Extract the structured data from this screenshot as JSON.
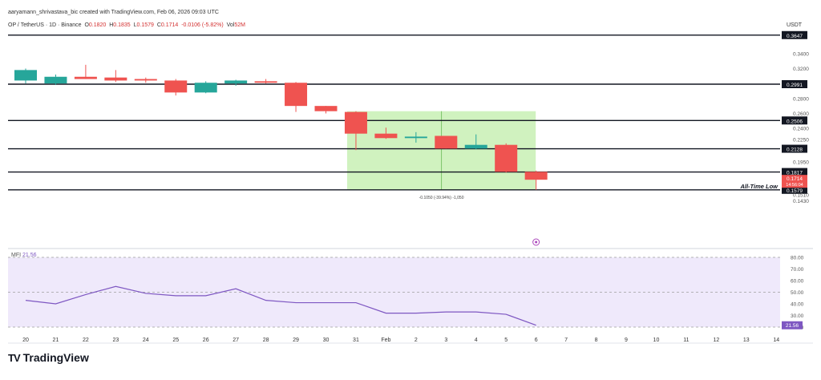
{
  "header": {
    "author_line": "aaryamann_shrivastava_bic created with TradingView.com, Feb 06, 2026 09:03 UTC",
    "symbol": "OP / TetherUS · 1D · Binance",
    "ohlc": {
      "o_label": "O",
      "o": "0.1820",
      "h_label": "H",
      "h": "0.1835",
      "l_label": "L",
      "l": "0.1579",
      "c_label": "C",
      "c": "0.1714",
      "change": "-0.0106 (-5.82%)",
      "vol_label": "Vol",
      "vol": "52M"
    },
    "currency": "USDT"
  },
  "colors": {
    "up": "#26a69a",
    "down": "#ef5350",
    "range_fill": "#c8f0b4",
    "mfi_line": "#7e57c2",
    "mfi_band": "#efe9fb"
  },
  "chart_data": [
    {
      "type": "candlestick",
      "title": "",
      "ylim": [
        0.13,
        0.38
      ],
      "price_axis_ticks": [
        "0.3400",
        "0.3200",
        "0.2800",
        "0.2600",
        "0.2400",
        "0.2250",
        "0.1950",
        "0.1510",
        "0.1430"
      ],
      "x_ticks": [
        "20",
        "21",
        "22",
        "23",
        "24",
        "25",
        "26",
        "27",
        "28",
        "29",
        "30",
        "31",
        "Feb",
        "2",
        "3",
        "4",
        "5",
        "6",
        "7",
        "8",
        "9",
        "10",
        "11",
        "12",
        "13",
        "14"
      ],
      "candles": [
        {
          "date": "20",
          "open": 0.304,
          "high": 0.32,
          "low": 0.3,
          "close": 0.318
        },
        {
          "date": "21",
          "open": 0.3,
          "high": 0.312,
          "low": 0.298,
          "close": 0.309
        },
        {
          "date": "22",
          "open": 0.309,
          "high": 0.325,
          "low": 0.306,
          "close": 0.306
        },
        {
          "date": "23",
          "open": 0.308,
          "high": 0.318,
          "low": 0.302,
          "close": 0.304
        },
        {
          "date": "24",
          "open": 0.306,
          "high": 0.308,
          "low": 0.301,
          "close": 0.304
        },
        {
          "date": "25",
          "open": 0.304,
          "high": 0.306,
          "low": 0.284,
          "close": 0.288
        },
        {
          "date": "26",
          "open": 0.288,
          "high": 0.303,
          "low": 0.287,
          "close": 0.301
        },
        {
          "date": "27",
          "open": 0.3,
          "high": 0.305,
          "low": 0.297,
          "close": 0.304
        },
        {
          "date": "28",
          "open": 0.303,
          "high": 0.306,
          "low": 0.3,
          "close": 0.301
        },
        {
          "date": "29",
          "open": 0.301,
          "high": 0.302,
          "low": 0.262,
          "close": 0.27
        },
        {
          "date": "30",
          "open": 0.27,
          "high": 0.27,
          "low": 0.26,
          "close": 0.263
        },
        {
          "date": "31",
          "open": 0.262,
          "high": 0.263,
          "low": 0.211,
          "close": 0.233
        },
        {
          "date": "Feb",
          "open": 0.233,
          "high": 0.241,
          "low": 0.226,
          "close": 0.227
        },
        {
          "date": "2",
          "open": 0.227,
          "high": 0.235,
          "low": 0.221,
          "close": 0.229
        },
        {
          "date": "3",
          "open": 0.23,
          "high": 0.23,
          "low": 0.213,
          "close": 0.213
        },
        {
          "date": "4",
          "open": 0.213,
          "high": 0.232,
          "low": 0.212,
          "close": 0.218
        },
        {
          "date": "5",
          "open": 0.218,
          "high": 0.22,
          "low": 0.181,
          "close": 0.182
        },
        {
          "date": "6",
          "open": 0.182,
          "high": 0.1835,
          "low": 0.1579,
          "close": 0.1714
        }
      ],
      "levels": [
        {
          "value": 0.3647,
          "label": "0.3647"
        },
        {
          "value": 0.2991,
          "label": "0.2991"
        },
        {
          "value": 0.2506,
          "label": "0.2506"
        },
        {
          "value": 0.2128,
          "label": "0.2128"
        },
        {
          "value": 0.1817,
          "label": "0.1817"
        },
        {
          "value": 0.1579,
          "label": "0.1579",
          "annotation": "All-Time Low"
        }
      ],
      "current_price": {
        "value": 0.1714,
        "label": "0.1714",
        "countdown": "14:56:04"
      },
      "measure_range": {
        "from": "31",
        "to": "5",
        "high": 0.263,
        "low": 0.1579,
        "text": "-0.1050 (-39.94%) -1,050"
      }
    },
    {
      "type": "line",
      "title": "MFI",
      "value_label": "21.56",
      "ylim": [
        15,
        85
      ],
      "axis_ticks": [
        "80.00",
        "70.00",
        "60.00",
        "50.00",
        "40.00",
        "30.00",
        "20.00"
      ],
      "band": [
        20,
        80
      ],
      "midline": 50,
      "series": [
        {
          "x": [
            "20",
            "21",
            "22",
            "23",
            "24",
            "25",
            "26",
            "27",
            "28",
            "29",
            "30",
            "31",
            "Feb",
            "2",
            "3",
            "4",
            "5",
            "6"
          ],
          "values": [
            43,
            40,
            48,
            55,
            49,
            47,
            47,
            53,
            43,
            41,
            41,
            41,
            32,
            32,
            33,
            33,
            31,
            21.56
          ]
        }
      ]
    }
  ],
  "brand": {
    "logo": "TV",
    "name": "TradingView"
  }
}
